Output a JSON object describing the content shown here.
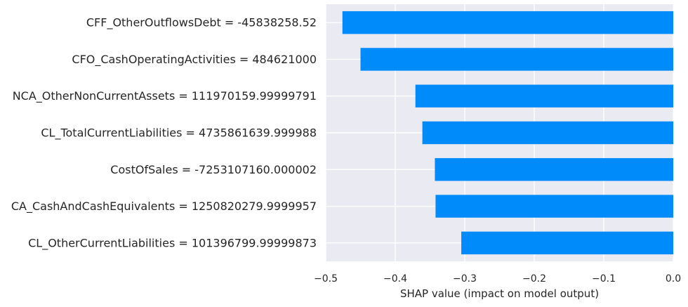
{
  "chart_data": {
    "type": "bar",
    "orientation": "horizontal",
    "title": "",
    "xlabel": "SHAP value (impact on model output)",
    "ylabel": "",
    "xlim": [
      -0.5,
      0.0
    ],
    "x_ticks": [
      -0.5,
      -0.4,
      -0.3,
      -0.2,
      -0.1,
      0.0
    ],
    "x_tick_labels": [
      "−0.5",
      "−0.4",
      "−0.3",
      "−0.2",
      "−0.1",
      "0.0"
    ],
    "grid": true,
    "categories": [
      "CFF_OtherOutflowsDebt = -45838258.52",
      "CFO_CashOperatingActivities = 484621000",
      "NCA_OtherNonCurrentAssets = 111970159.99999791",
      "CL_TotalCurrentLiabilities = 4735861639.999988",
      "CostOfSales = -7253107160.000002",
      "CA_CashAndCashEquivalents = 1250820279.9999957",
      "CL_OtherCurrentLiabilities = 101396799.99999873"
    ],
    "values": [
      -0.476,
      -0.45,
      -0.371,
      -0.361,
      -0.343,
      -0.342,
      -0.305
    ],
    "colors": {
      "bar": "#008bfb",
      "plot_background": "#eaeaf2",
      "grid": "#ffffff",
      "text": "#262626",
      "tick_text": "#262626"
    }
  }
}
